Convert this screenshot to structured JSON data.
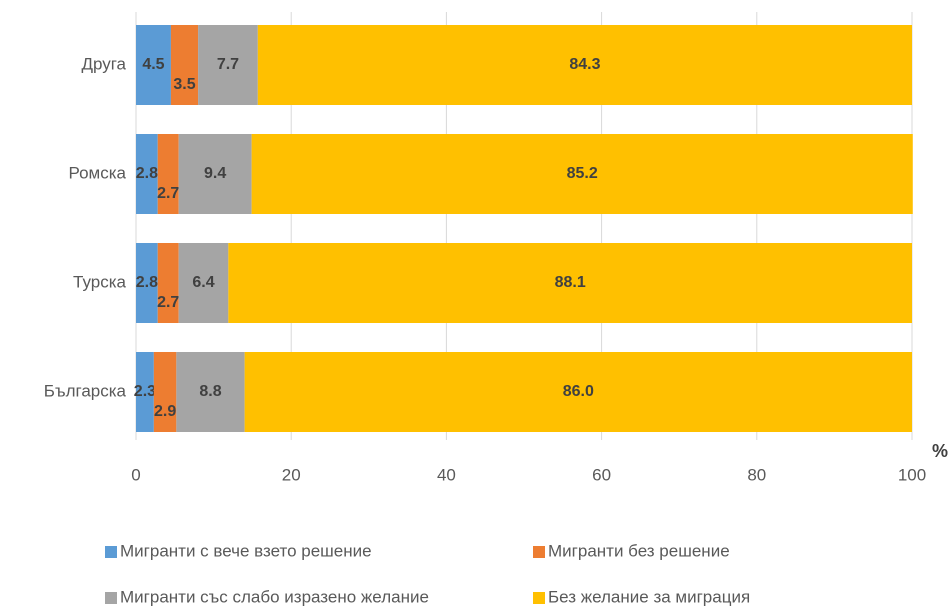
{
  "chart_data": {
    "type": "stacked-barh",
    "categories": [
      "Друга",
      "Ромска",
      "Турска",
      "Българска"
    ],
    "series": [
      {
        "name": "Мигранти с вече взето решение",
        "color": "#5b9bd5",
        "values": [
          4.5,
          2.8,
          2.8,
          2.3
        ]
      },
      {
        "name": "Мигранти без решение",
        "color": "#ed7d31",
        "values": [
          3.5,
          2.7,
          2.7,
          2.9
        ]
      },
      {
        "name": "Мигранти със слабо изразено желание",
        "color": "#a5a5a5",
        "values": [
          7.7,
          9.4,
          6.4,
          8.8
        ]
      },
      {
        "name": "Без желание за миграция",
        "color": "#ffc000",
        "values": [
          84.3,
          85.2,
          88.1,
          86.0
        ],
        "value_labels": [
          "84.3",
          "85.2",
          "88.1",
          "86.0"
        ]
      }
    ],
    "xlabel": "%",
    "xlim": [
      0,
      100
    ],
    "xticks": [
      0,
      20,
      40,
      60,
      80,
      100
    ],
    "grid": true
  }
}
